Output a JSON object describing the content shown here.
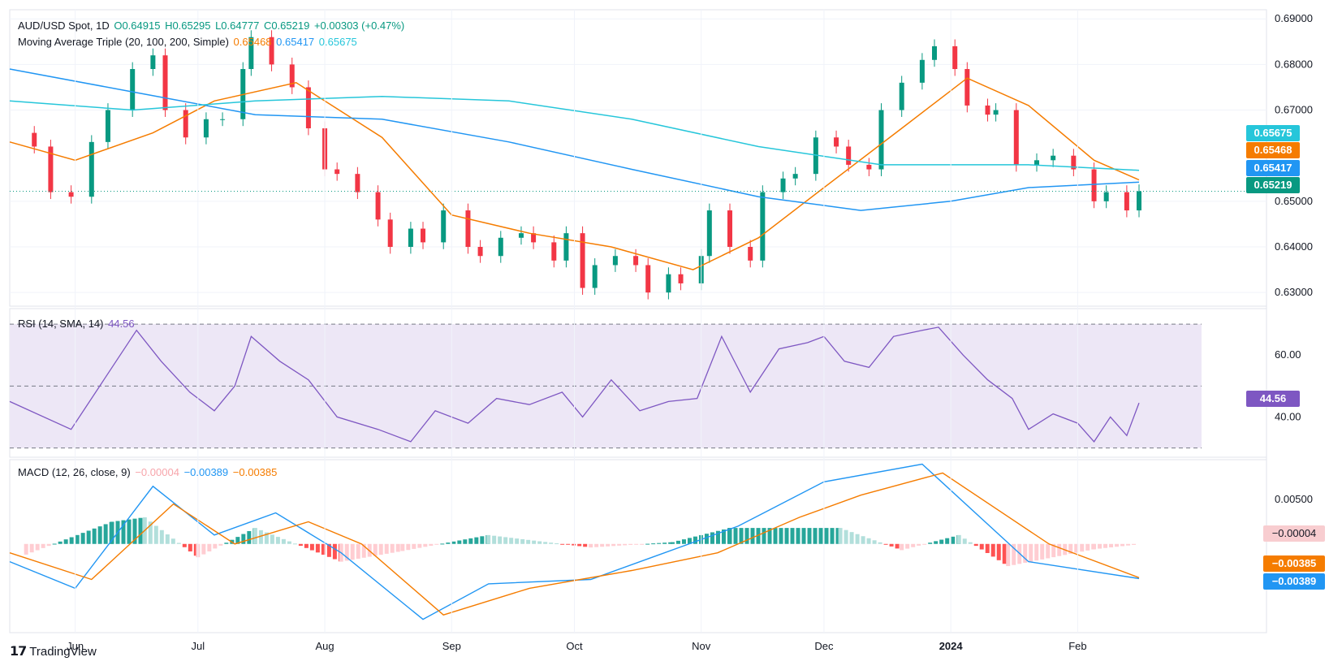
{
  "header": {
    "symbol": "AUD/USD Spot, 1D",
    "open": "O0.64915",
    "high": "H0.65295",
    "low": "L0.64777",
    "close": "C0.65219",
    "change": "+0.00303 (+0.47%)",
    "ma_label": "Moving Average Triple (20, 100, 200, Simple)",
    "ma20": "0.65468",
    "ma100": "0.65417",
    "ma200": "0.65675",
    "rsi_label": "RSI (14, SMA, 14)",
    "rsi_value": "44.56",
    "macd_label": "MACD (12, 26, close, 9)",
    "macd_hist": "−0.00004",
    "macd_line": "−0.00389",
    "macd_signal": "−0.00385"
  },
  "badges": {
    "ma200": "0.65675",
    "ma20": "0.65468",
    "ma100": "0.65417",
    "close": "0.65219",
    "rsi": "44.56",
    "macd_hist": "−0.00004",
    "macd_signal": "−0.00385",
    "macd_line": "−0.00389"
  },
  "axes": {
    "price_ticks": [
      "0.69000",
      "0.68000",
      "0.67000",
      "0.65000",
      "0.64000",
      "0.63000"
    ],
    "rsi_ticks": [
      "60.00",
      "40.00"
    ],
    "macd_ticks": [
      "0.00500"
    ],
    "x_ticks": [
      "Jun",
      "Jul",
      "Aug",
      "Sep",
      "Oct",
      "Nov",
      "Dec",
      "2024",
      "Feb"
    ]
  },
  "brand": "TradingView",
  "colors": {
    "up": "#089981",
    "down": "#f23645",
    "ma20": "#f57c00",
    "ma100": "#2196f3",
    "ma200": "#26c6da",
    "rsi": "#7e57c2",
    "macd": "#2196f3",
    "signal": "#f57c00",
    "rsi_band": "#ede7f6"
  },
  "chart_data": [
    {
      "type": "candlestick",
      "title": "AUD/USD Spot, 1D",
      "ylim": [
        0.627,
        0.692
      ],
      "x_range": [
        "2023-05-16",
        "2024-02-16"
      ],
      "close_series": [
        [
          "2023-05-16",
          0.665
        ],
        [
          "2023-05-22",
          0.662
        ],
        [
          "2023-05-26",
          0.652
        ],
        [
          "2023-05-31",
          0.651
        ],
        [
          "2023-06-05",
          0.663
        ],
        [
          "2023-06-09",
          0.67
        ],
        [
          "2023-06-15",
          0.679
        ],
        [
          "2023-06-20",
          0.682
        ],
        [
          "2023-06-23",
          0.67
        ],
        [
          "2023-06-28",
          0.664
        ],
        [
          "2023-07-03",
          0.668
        ],
        [
          "2023-07-07",
          0.668
        ],
        [
          "2023-07-12",
          0.679
        ],
        [
          "2023-07-14",
          0.686
        ],
        [
          "2023-07-19",
          0.68
        ],
        [
          "2023-07-24",
          0.675
        ],
        [
          "2023-07-28",
          0.666
        ],
        [
          "2023-08-01",
          0.657
        ],
        [
          "2023-08-04",
          0.656
        ],
        [
          "2023-08-09",
          0.652
        ],
        [
          "2023-08-14",
          0.646
        ],
        [
          "2023-08-17",
          0.64
        ],
        [
          "2023-08-22",
          0.644
        ],
        [
          "2023-08-25",
          0.641
        ],
        [
          "2023-08-30",
          0.648
        ],
        [
          "2023-09-05",
          0.64
        ],
        [
          "2023-09-08",
          0.638
        ],
        [
          "2023-09-13",
          0.642
        ],
        [
          "2023-09-18",
          0.643
        ],
        [
          "2023-09-21",
          0.641
        ],
        [
          "2023-09-26",
          0.637
        ],
        [
          "2023-09-29",
          0.643
        ],
        [
          "2023-10-03",
          0.631
        ],
        [
          "2023-10-06",
          0.636
        ],
        [
          "2023-10-11",
          0.638
        ],
        [
          "2023-10-16",
          0.636
        ],
        [
          "2023-10-19",
          0.63
        ],
        [
          "2023-10-24",
          0.634
        ],
        [
          "2023-10-27",
          0.632
        ],
        [
          "2023-11-01",
          0.638
        ],
        [
          "2023-11-03",
          0.648
        ],
        [
          "2023-11-08",
          0.64
        ],
        [
          "2023-11-13",
          0.637
        ],
        [
          "2023-11-16",
          0.652
        ],
        [
          "2023-11-21",
          0.655
        ],
        [
          "2023-11-24",
          0.656
        ],
        [
          "2023-11-29",
          0.664
        ],
        [
          "2023-12-04",
          0.662
        ],
        [
          "2023-12-07",
          0.658
        ],
        [
          "2023-12-12",
          0.657
        ],
        [
          "2023-12-15",
          0.67
        ],
        [
          "2023-12-20",
          0.676
        ],
        [
          "2023-12-25",
          0.681
        ],
        [
          "2023-12-28",
          0.684
        ],
        [
          "2024-01-02",
          0.679
        ],
        [
          "2024-01-05",
          0.671
        ],
        [
          "2024-01-10",
          0.669
        ],
        [
          "2024-01-12",
          0.67
        ],
        [
          "2024-01-17",
          0.658
        ],
        [
          "2024-01-22",
          0.659
        ],
        [
          "2024-01-26",
          0.66
        ],
        [
          "2024-01-31",
          0.657
        ],
        [
          "2024-02-05",
          0.65
        ],
        [
          "2024-02-08",
          0.652
        ],
        [
          "2024-02-13",
          0.648
        ],
        [
          "2024-02-16",
          0.6522
        ]
      ]
    },
    {
      "type": "line",
      "title": "Moving Average Triple (20, 100, 200, Simple)",
      "series": [
        {
          "name": "20",
          "values": [
            [
              "2023-05-16",
              0.663
            ],
            [
              "2023-06-01",
              0.659
            ],
            [
              "2023-06-20",
              0.665
            ],
            [
              "2023-07-05",
              0.672
            ],
            [
              "2023-07-25",
              0.676
            ],
            [
              "2023-08-15",
              0.664
            ],
            [
              "2023-09-01",
              0.647
            ],
            [
              "2023-09-20",
              0.643
            ],
            [
              "2023-10-10",
              0.64
            ],
            [
              "2023-10-30",
              0.635
            ],
            [
              "2023-11-15",
              0.642
            ],
            [
              "2023-12-01",
              0.653
            ],
            [
              "2023-12-20",
              0.666
            ],
            [
              "2024-01-05",
              0.677
            ],
            [
              "2024-01-20",
              0.671
            ],
            [
              "2024-02-05",
              0.659
            ],
            [
              "2024-02-16",
              0.6547
            ]
          ]
        },
        {
          "name": "100",
          "values": [
            [
              "2023-05-16",
              0.679
            ],
            [
              "2023-06-15",
              0.674
            ],
            [
              "2023-07-15",
              0.669
            ],
            [
              "2023-08-15",
              0.668
            ],
            [
              "2023-09-15",
              0.663
            ],
            [
              "2023-10-15",
              0.657
            ],
            [
              "2023-11-15",
              0.651
            ],
            [
              "2023-12-10",
              0.648
            ],
            [
              "2024-01-01",
              0.65
            ],
            [
              "2024-01-20",
              0.653
            ],
            [
              "2024-02-16",
              0.6542
            ]
          ]
        },
        {
          "name": "200",
          "values": [
            [
              "2023-05-16",
              0.672
            ],
            [
              "2023-06-15",
              0.67
            ],
            [
              "2023-07-15",
              0.672
            ],
            [
              "2023-08-15",
              0.673
            ],
            [
              "2023-09-15",
              0.672
            ],
            [
              "2023-10-15",
              0.668
            ],
            [
              "2023-11-15",
              0.662
            ],
            [
              "2023-12-15",
              0.658
            ],
            [
              "2024-01-20",
              0.658
            ],
            [
              "2024-02-16",
              0.6568
            ]
          ]
        }
      ]
    },
    {
      "type": "line",
      "title": "RSI (14, SMA, 14)",
      "ylim": [
        27,
        75
      ],
      "levels": [
        70,
        50,
        30
      ],
      "series": [
        {
          "name": "RSI",
          "values": [
            [
              "2023-05-16",
              45
            ],
            [
              "2023-05-31",
              36
            ],
            [
              "2023-06-08",
              52
            ],
            [
              "2023-06-16",
              68
            ],
            [
              "2023-06-22",
              58
            ],
            [
              "2023-06-29",
              48
            ],
            [
              "2023-07-05",
              42
            ],
            [
              "2023-07-10",
              50
            ],
            [
              "2023-07-14",
              66
            ],
            [
              "2023-07-21",
              58
            ],
            [
              "2023-07-28",
              52
            ],
            [
              "2023-08-04",
              40
            ],
            [
              "2023-08-14",
              36
            ],
            [
              "2023-08-22",
              32
            ],
            [
              "2023-08-28",
              42
            ],
            [
              "2023-09-05",
              38
            ],
            [
              "2023-09-12",
              46
            ],
            [
              "2023-09-20",
              44
            ],
            [
              "2023-09-28",
              48
            ],
            [
              "2023-10-03",
              40
            ],
            [
              "2023-10-10",
              52
            ],
            [
              "2023-10-17",
              42
            ],
            [
              "2023-10-24",
              45
            ],
            [
              "2023-10-31",
              46
            ],
            [
              "2023-11-06",
              66
            ],
            [
              "2023-11-13",
              48
            ],
            [
              "2023-11-20",
              62
            ],
            [
              "2023-11-27",
              64
            ],
            [
              "2023-12-01",
              66
            ],
            [
              "2023-12-06",
              58
            ],
            [
              "2023-12-12",
              56
            ],
            [
              "2023-12-18",
              66
            ],
            [
              "2023-12-25",
              68
            ],
            [
              "2023-12-29",
              69
            ],
            [
              "2024-01-04",
              60
            ],
            [
              "2024-01-10",
              52
            ],
            [
              "2024-01-16",
              46
            ],
            [
              "2024-01-20",
              36
            ],
            [
              "2024-01-26",
              41
            ],
            [
              "2024-02-01",
              38
            ],
            [
              "2024-02-05",
              32
            ],
            [
              "2024-02-09",
              40
            ],
            [
              "2024-02-13",
              34
            ],
            [
              "2024-02-16",
              44.56
            ]
          ]
        }
      ]
    },
    {
      "type": "bar+line",
      "title": "MACD (12, 26, close, 9)",
      "ylim": [
        -0.01,
        0.0095
      ],
      "series": [
        {
          "name": "MACD",
          "values": [
            [
              "2023-05-16",
              -0.002
            ],
            [
              "2023-06-01",
              -0.005
            ],
            [
              "2023-06-20",
              0.0065
            ],
            [
              "2023-07-05",
              0.001
            ],
            [
              "2023-07-20",
              0.0035
            ],
            [
              "2023-08-05",
              -0.001
            ],
            [
              "2023-08-25",
              -0.0085
            ],
            [
              "2023-09-10",
              -0.0045
            ],
            [
              "2023-10-05",
              -0.004
            ],
            [
              "2023-10-20",
              -0.0015
            ],
            [
              "2023-11-10",
              0.002
            ],
            [
              "2023-12-01",
              0.007
            ],
            [
              "2023-12-25",
              0.009
            ],
            [
              "2024-01-20",
              -0.002
            ],
            [
              "2024-02-16",
              -0.0039
            ]
          ]
        },
        {
          "name": "Signal",
          "values": [
            [
              "2023-05-16",
              -0.001
            ],
            [
              "2023-06-05",
              -0.004
            ],
            [
              "2023-06-25",
              0.0045
            ],
            [
              "2023-07-10",
              0.0
            ],
            [
              "2023-07-28",
              0.0025
            ],
            [
              "2023-08-10",
              0.0
            ],
            [
              "2023-08-30",
              -0.008
            ],
            [
              "2023-09-20",
              -0.005
            ],
            [
              "2023-10-15",
              -0.003
            ],
            [
              "2023-11-05",
              -0.001
            ],
            [
              "2023-11-25",
              0.003
            ],
            [
              "2023-12-10",
              0.0055
            ],
            [
              "2023-12-30",
              0.008
            ],
            [
              "2024-01-25",
              0.0
            ],
            [
              "2024-02-16",
              -0.0038
            ]
          ]
        },
        {
          "name": "Histogram",
          "values": [
            [
              "2023-05-20",
              -0.0012
            ],
            [
              "2023-06-10",
              0.0025
            ],
            [
              "2023-06-18",
              0.003
            ],
            [
              "2023-07-01",
              -0.0015
            ],
            [
              "2023-07-15",
              0.0018
            ],
            [
              "2023-08-05",
              -0.002
            ],
            [
              "2023-08-20",
              -0.0008
            ],
            [
              "2023-09-10",
              0.001
            ],
            [
              "2023-10-05",
              -0.0004
            ],
            [
              "2023-10-25",
              0.0002
            ],
            [
              "2023-11-08",
              0.0018
            ],
            [
              "2023-12-05",
              0.0018
            ],
            [
              "2023-12-20",
              -0.0007
            ],
            [
              "2024-01-03",
              0.001
            ],
            [
              "2024-01-15",
              -0.0025
            ],
            [
              "2024-02-05",
              -0.0006
            ],
            [
              "2024-02-16",
              -4e-05
            ]
          ]
        }
      ]
    }
  ]
}
